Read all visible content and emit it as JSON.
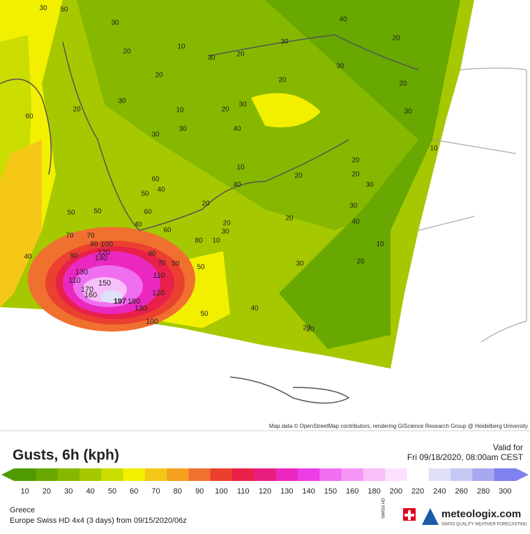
{
  "map": {
    "attribution": "Map data © OpenStreetMap contributors, rendering GIScience Research Group @ Heidelberg University",
    "contour_labels": [
      "30",
      "50",
      "30",
      "20",
      "10",
      "20",
      "30",
      "20",
      "30",
      "40",
      "20",
      "30",
      "20",
      "20",
      "10",
      "60",
      "20",
      "30",
      "10",
      "40",
      "30",
      "20",
      "30",
      "30",
      "10",
      "20",
      "20",
      "30",
      "30",
      "40",
      "60",
      "40",
      "50",
      "50",
      "40",
      "20",
      "10",
      "20",
      "30",
      "70",
      "80",
      "100",
      "120",
      "140",
      "90",
      "130",
      "110",
      "150",
      "170",
      "160",
      "197",
      "180",
      "130",
      "120",
      "100",
      "110",
      "80",
      "70",
      "60",
      "80",
      "50",
      "50",
      "20",
      "30",
      "10",
      "30",
      "20",
      "40",
      "20",
      "50",
      "40",
      "60",
      "70",
      "20",
      "50",
      "40",
      "20"
    ]
  },
  "legend": {
    "title": "Gusts, 6h (kph)",
    "valid_label": "Valid for",
    "valid_time": "Fri 09/18/2020, 08:00am CEST",
    "scale": [
      {
        "value": 10,
        "color": "#4f9a00"
      },
      {
        "value": 20,
        "color": "#68a800"
      },
      {
        "value": 30,
        "color": "#86b800"
      },
      {
        "value": 40,
        "color": "#a6c800"
      },
      {
        "value": 50,
        "color": "#cadc00"
      },
      {
        "value": 60,
        "color": "#f2f000"
      },
      {
        "value": 70,
        "color": "#f5c818"
      },
      {
        "value": 80,
        "color": "#f5a020"
      },
      {
        "value": 90,
        "color": "#f07030"
      },
      {
        "value": 100,
        "color": "#eb4030"
      },
      {
        "value": 110,
        "color": "#e8204a"
      },
      {
        "value": 120,
        "color": "#e81e80"
      },
      {
        "value": 130,
        "color": "#ea28c0"
      },
      {
        "value": 140,
        "color": "#ee3ce6"
      },
      {
        "value": 150,
        "color": "#f06ef0"
      },
      {
        "value": 160,
        "color": "#f496f4"
      },
      {
        "value": 180,
        "color": "#f8c0f8"
      },
      {
        "value": 200,
        "color": "#fce0fc"
      },
      {
        "value": 220,
        "color": "#ffffff"
      },
      {
        "value": 240,
        "color": "#e0e0f8"
      },
      {
        "value": 260,
        "color": "#c8c8f4"
      },
      {
        "value": 280,
        "color": "#a8a8f0"
      },
      {
        "value": 300,
        "color": "#8080ee"
      }
    ]
  },
  "footer": {
    "region": "Greece",
    "model": "Europe Swiss HD 4x4 (3 days) from 09/15/2020/06z",
    "badge": "SWISS HD",
    "brand": "meteologix.com",
    "tagline": "SWISS QUALITY WEATHER FORECASTING"
  }
}
